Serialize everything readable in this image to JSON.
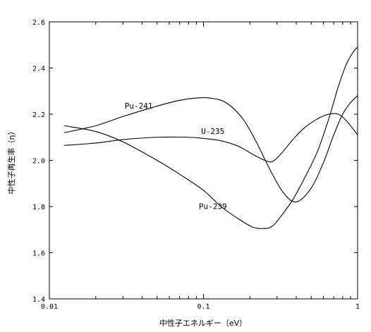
{
  "chart_data": {
    "type": "line",
    "title": "",
    "xlabel": "中性子エネルギー（eV）",
    "ylabel": "中性子再生率（η）",
    "xscale": "log",
    "xlim": [
      0.01,
      1
    ],
    "ylim": [
      1.4,
      2.6
    ],
    "x_ticks": [
      0.01,
      0.1,
      1
    ],
    "x_tick_labels": [
      "0.01",
      "0.1",
      "1"
    ],
    "y_ticks": [
      1.4,
      1.6,
      1.8,
      2.0,
      2.2,
      2.4,
      2.6
    ],
    "y_tick_labels": [
      "1.4",
      "1.6",
      "1.8",
      "2.0",
      "2.2",
      "2.4",
      "2.6"
    ],
    "grid": false,
    "legend": "none",
    "series": [
      {
        "name": "Pu-241",
        "x": [
          0.0125,
          0.02,
          0.03,
          0.05,
          0.07,
          0.09,
          0.11,
          0.14,
          0.18,
          0.22,
          0.27,
          0.33,
          0.4,
          0.5,
          0.6,
          0.7,
          0.8,
          0.9,
          1.0
        ],
        "y": [
          2.12,
          2.15,
          2.19,
          2.235,
          2.26,
          2.27,
          2.27,
          2.25,
          2.18,
          2.08,
          1.96,
          1.86,
          1.82,
          1.88,
          1.99,
          2.11,
          2.2,
          2.25,
          2.28
        ]
      },
      {
        "name": "U-235",
        "x": [
          0.0125,
          0.02,
          0.03,
          0.05,
          0.08,
          0.1,
          0.13,
          0.17,
          0.21,
          0.25,
          0.28,
          0.32,
          0.38,
          0.45,
          0.55,
          0.65,
          0.75,
          0.85,
          0.95,
          1.0
        ],
        "y": [
          2.065,
          2.075,
          2.09,
          2.1,
          2.1,
          2.095,
          2.085,
          2.06,
          2.025,
          2.0,
          1.995,
          2.03,
          2.09,
          2.14,
          2.18,
          2.2,
          2.2,
          2.17,
          2.13,
          2.11
        ]
      },
      {
        "name": "Pu-239",
        "x": [
          0.0125,
          0.02,
          0.03,
          0.05,
          0.07,
          0.1,
          0.13,
          0.17,
          0.21,
          0.25,
          0.28,
          0.32,
          0.38,
          0.45,
          0.55,
          0.65,
          0.75,
          0.85,
          0.95,
          1.0
        ],
        "y": [
          2.15,
          2.125,
          2.08,
          2.0,
          1.94,
          1.87,
          1.8,
          1.745,
          1.71,
          1.705,
          1.715,
          1.76,
          1.83,
          1.92,
          2.04,
          2.18,
          2.32,
          2.42,
          2.475,
          2.49
        ]
      }
    ],
    "annotations": [
      {
        "text": "Pu-241",
        "series": "Pu-241"
      },
      {
        "text": "U-235",
        "series": "U-235"
      },
      {
        "text": "Pu-239",
        "series": "Pu-239"
      }
    ]
  }
}
